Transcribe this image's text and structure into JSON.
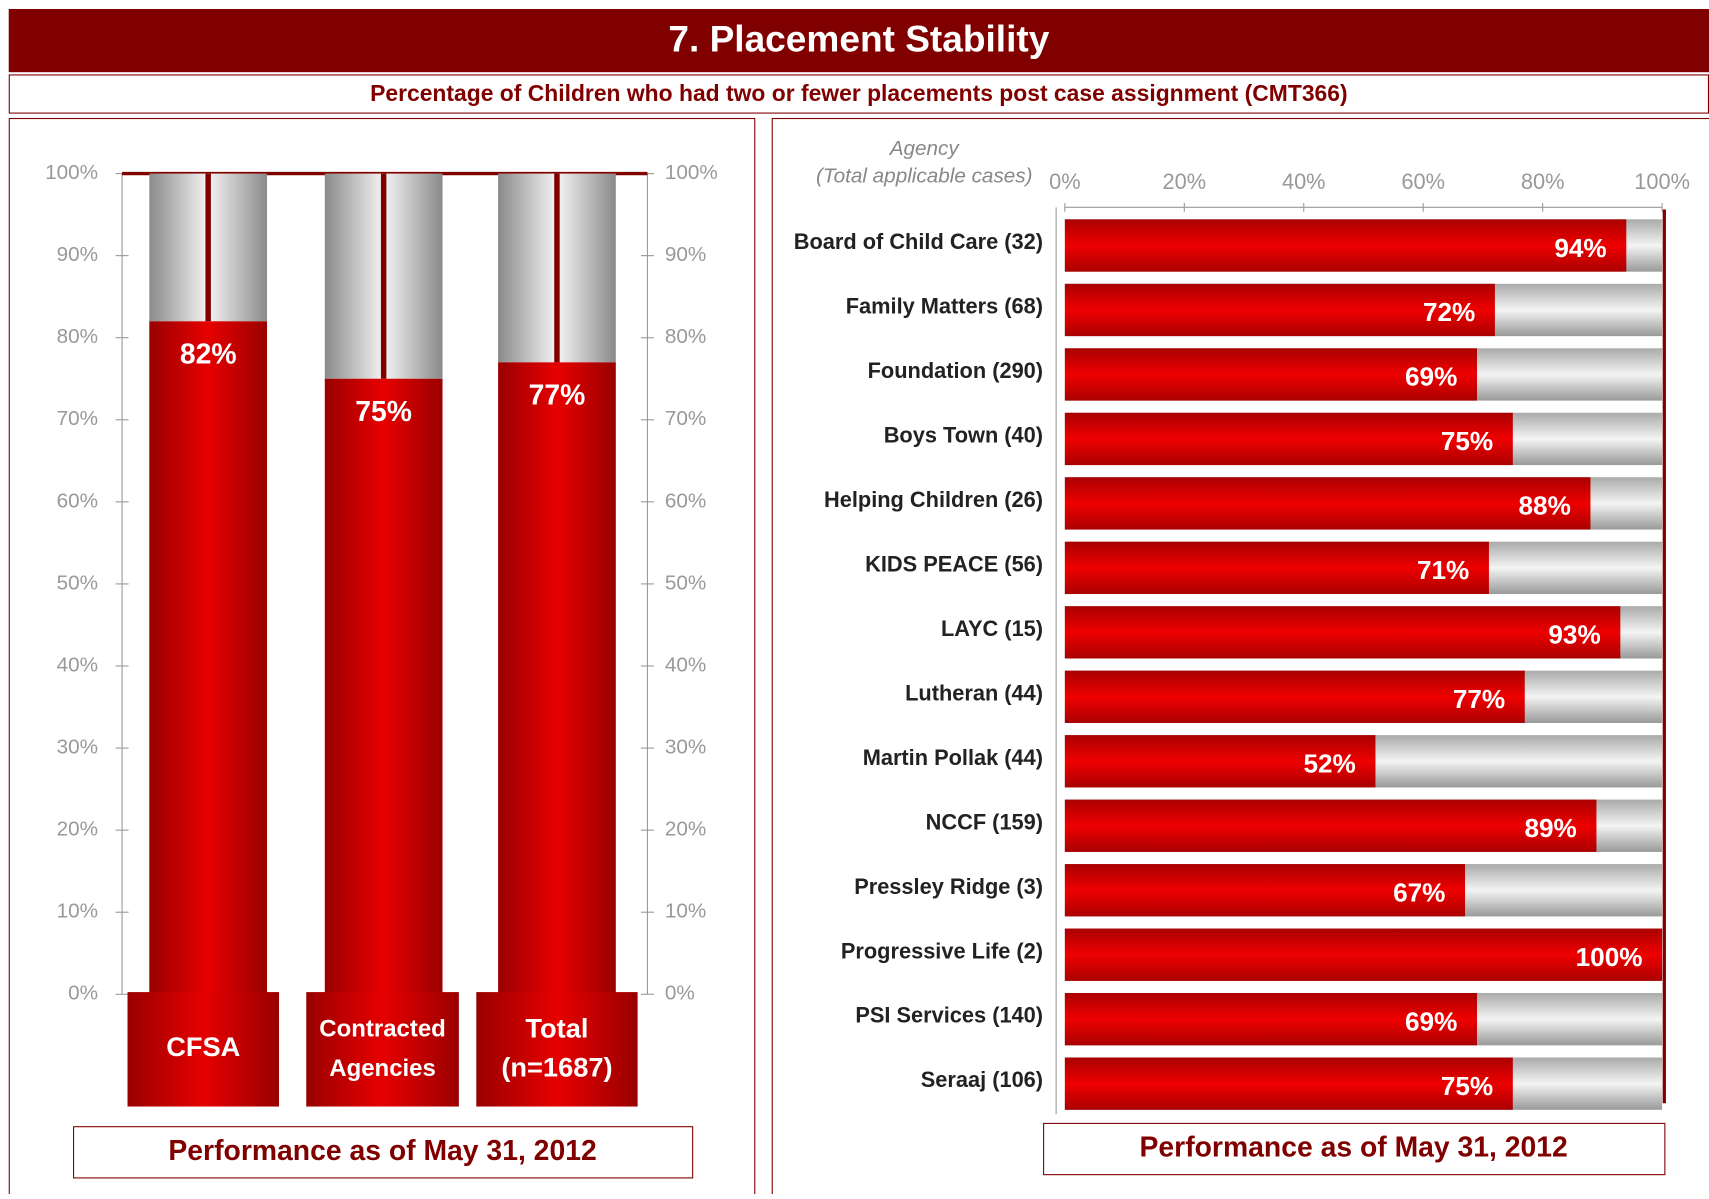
{
  "header": {
    "title": "7.  Placement Stability",
    "subtitle": "Percentage of Children who had two or fewer placements post case assignment (CMT366)"
  },
  "chart_data": [
    {
      "type": "bar",
      "categories": [
        "CFSA",
        "Contracted Agencies",
        "Total (n=1687)"
      ],
      "values": [
        82,
        75,
        77
      ],
      "value_labels": [
        "82%",
        "75%",
        "77%"
      ],
      "color": "#cc0000",
      "ylim": [
        0,
        100
      ],
      "yticks": [
        {
          "value": 0,
          "label": "0%"
        },
        {
          "value": 10,
          "label": "10%"
        },
        {
          "value": 20,
          "label": "20%"
        },
        {
          "value": 30,
          "label": "30%"
        },
        {
          "value": 40,
          "label": "40%"
        },
        {
          "value": 50,
          "label": "50%"
        },
        {
          "value": 60,
          "label": "60%"
        },
        {
          "value": 70,
          "label": "70%"
        },
        {
          "value": 80,
          "label": "80%"
        },
        {
          "value": 90,
          "label": "90%"
        },
        {
          "value": 100,
          "label": "100%"
        }
      ],
      "y2lim": [
        0,
        100
      ],
      "y2ticks": [
        {
          "value": 0,
          "label": "0%"
        },
        {
          "value": 10,
          "label": "10%"
        },
        {
          "value": 20,
          "label": "20%"
        },
        {
          "value": 30,
          "label": "30%"
        },
        {
          "value": 40,
          "label": "40%"
        },
        {
          "value": 50,
          "label": "50%"
        },
        {
          "value": 60,
          "label": "60%"
        },
        {
          "value": 70,
          "label": "70%"
        },
        {
          "value": 80,
          "label": "80%"
        },
        {
          "value": 90,
          "label": "90%"
        },
        {
          "value": 100,
          "label": "100%"
        }
      ],
      "caption": "Performance as of May 31, 2012"
    },
    {
      "type": "barh",
      "ylabel": "Agency (Total applicable cases)",
      "categories": [
        "Board of Child Care (32)",
        "Family Matters (68)",
        "Foundation (290)",
        "Boys Town (40)",
        "Helping Children (26)",
        "KIDS PEACE (56)",
        "LAYC (15)",
        "Lutheran (44)",
        "Martin Pollak (44)",
        "NCCF (159)",
        "Pressley Ridge (3)",
        "Progressive Life (2)",
        "PSI Services (140)",
        "Seraaj (106)"
      ],
      "values": [
        94,
        72,
        69,
        75,
        88,
        71,
        93,
        77,
        52,
        89,
        67,
        100,
        69,
        75
      ],
      "value_labels": [
        "94%",
        "72%",
        "69%",
        "75%",
        "88%",
        "71%",
        "93%",
        "77%",
        "52%",
        "89%",
        "67%",
        "100%",
        "69%",
        "75%"
      ],
      "color": "#cc0000",
      "xlim": [
        0,
        100
      ],
      "xticks": [
        {
          "value": 0,
          "label": "0%"
        },
        {
          "value": 20,
          "label": "20%"
        },
        {
          "value": 40,
          "label": "40%"
        },
        {
          "value": 60,
          "label": "60%"
        },
        {
          "value": 80,
          "label": "80%"
        },
        {
          "value": 100,
          "label": "100%"
        }
      ],
      "caption": "Performance as of May 31, 2012"
    }
  ]
}
